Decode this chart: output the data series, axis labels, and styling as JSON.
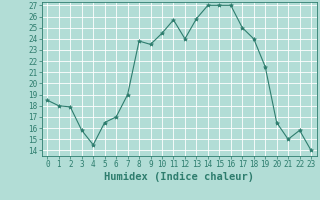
{
  "x": [
    0,
    1,
    2,
    3,
    4,
    5,
    6,
    7,
    8,
    9,
    10,
    11,
    12,
    13,
    14,
    15,
    16,
    17,
    18,
    19,
    20,
    21,
    22,
    23
  ],
  "y": [
    18.5,
    18.0,
    17.9,
    15.8,
    14.5,
    16.5,
    17.0,
    19.0,
    23.8,
    23.5,
    24.5,
    25.7,
    24.0,
    25.8,
    27.0,
    27.0,
    27.0,
    25.0,
    24.0,
    21.5,
    16.5,
    15.0,
    15.8,
    14.0
  ],
  "line_color": "#2e7d6e",
  "marker": "*",
  "marker_color": "#2e7d6e",
  "bg_color": "#b2ddd6",
  "grid_color": "#ffffff",
  "xlabel": "Humidex (Indice chaleur)",
  "xlim": [
    -0.5,
    23.5
  ],
  "ylim": [
    13.5,
    27.3
  ],
  "yticks": [
    14,
    15,
    16,
    17,
    18,
    19,
    20,
    21,
    22,
    23,
    24,
    25,
    26,
    27
  ],
  "xticks": [
    0,
    1,
    2,
    3,
    4,
    5,
    6,
    7,
    8,
    9,
    10,
    11,
    12,
    13,
    14,
    15,
    16,
    17,
    18,
    19,
    20,
    21,
    22,
    23
  ],
  "tick_color": "#2e7d6e",
  "tick_fontsize": 5.5,
  "xlabel_fontsize": 7.5,
  "spine_color": "#2e7d6e"
}
